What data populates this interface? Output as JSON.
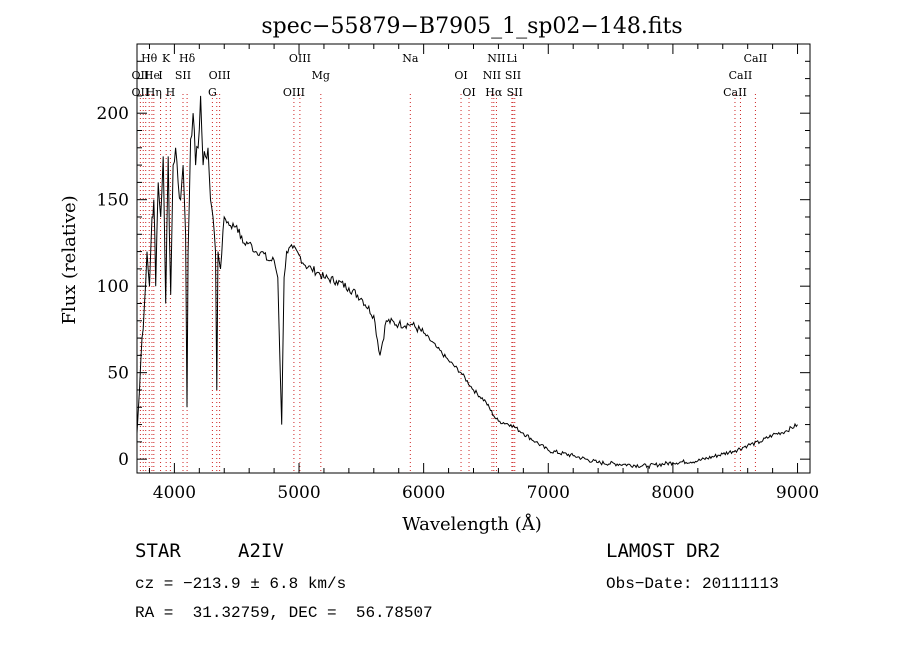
{
  "chart_data": {
    "type": "line",
    "title": "spec−55879−B7905_1_sp02−148.fits",
    "xlabel": "Wavelength (Å)",
    "ylabel": "Flux (relative)",
    "xlim": [
      3700,
      9100
    ],
    "ylim": [
      -8,
      240
    ],
    "x_ticks": [
      4000,
      5000,
      6000,
      7000,
      8000,
      9000
    ],
    "y_ticks": [
      0,
      50,
      100,
      150,
      200
    ],
    "grid": false,
    "series": [
      {
        "x": [
          3700,
          3720,
          3740,
          3760,
          3780,
          3800,
          3820,
          3835,
          3850,
          3870,
          3890,
          3910,
          3930,
          3950,
          3970,
          3990,
          4010,
          4030,
          4050,
          4070,
          4090,
          4101,
          4110,
          4130,
          4150,
          4170,
          4190,
          4210,
          4230,
          4250,
          4270,
          4290,
          4310,
          4330,
          4340,
          4350,
          4370,
          4400,
          4450,
          4500,
          4550,
          4600,
          4650,
          4700,
          4750,
          4800,
          4830,
          4861,
          4880,
          4900,
          4950,
          5000,
          5050,
          5100,
          5150,
          5200,
          5300,
          5400,
          5500,
          5600,
          5650,
          5700,
          5800,
          5900,
          6000,
          6100,
          6200,
          6300,
          6400,
          6500,
          6563,
          6600,
          6700,
          6800,
          6900,
          7000,
          7200,
          7400,
          7600,
          7800,
          8000,
          8200,
          8400,
          8500,
          8600,
          8700,
          8800,
          8900,
          9000
        ],
        "y": [
          15,
          40,
          70,
          90,
          120,
          100,
          140,
          150,
          100,
          160,
          140,
          175,
          90,
          175,
          95,
          170,
          180,
          160,
          150,
          170,
          130,
          30,
          120,
          185,
          200,
          170,
          180,
          210,
          170,
          175,
          180,
          150,
          140,
          120,
          40,
          120,
          110,
          140,
          135,
          135,
          125,
          125,
          120,
          120,
          115,
          115,
          105,
          20,
          105,
          120,
          122,
          118,
          112,
          110,
          108,
          105,
          103,
          99,
          93,
          83,
          60,
          80,
          78,
          78,
          73,
          65,
          57,
          50,
          40,
          33,
          25,
          22,
          20,
          15,
          10,
          5,
          2,
          -2,
          -3,
          -4,
          -2,
          -1,
          3,
          5,
          8,
          10,
          14,
          16,
          20
        ]
      }
    ],
    "line_labels": [
      {
        "text": "Hθ",
        "row": 1,
        "x": 3798
      },
      {
        "text": "K",
        "row": 1,
        "x": 3934
      },
      {
        "text": "Hδ",
        "row": 1,
        "x": 4102
      },
      {
        "text": "OIII",
        "row": 1,
        "x": 5007
      },
      {
        "text": "Na",
        "row": 1,
        "x": 5893
      },
      {
        "text": "NII",
        "row": 1,
        "x": 6584
      },
      {
        "text": "Li",
        "row": 1,
        "x": 6708
      },
      {
        "text": "CaII",
        "row": 1,
        "x": 8662
      },
      {
        "text": "OII",
        "row": 2,
        "x": 3727
      },
      {
        "text": "He",
        "row": 2,
        "x": 3820
      },
      {
        "text": "I",
        "row": 2,
        "x": 3889
      },
      {
        "text": "SII",
        "row": 2,
        "x": 4069
      },
      {
        "text": "OIII",
        "row": 2,
        "x": 4363
      },
      {
        "text": "Mg",
        "row": 2,
        "x": 5175
      },
      {
        "text": "OI",
        "row": 2,
        "x": 6300
      },
      {
        "text": "NII",
        "row": 2,
        "x": 6548
      },
      {
        "text": "SII",
        "row": 2,
        "x": 6717
      },
      {
        "text": "CaII",
        "row": 2,
        "x": 8542
      },
      {
        "text": "OII",
        "row": 3,
        "x": 3727
      },
      {
        "text": "Hη",
        "row": 3,
        "x": 3835
      },
      {
        "text": "H",
        "row": 3,
        "x": 3968
      },
      {
        "text": "G",
        "row": 3,
        "x": 4305
      },
      {
        "text": "OIII",
        "row": 3,
        "x": 4959
      },
      {
        "text": "OI",
        "row": 3,
        "x": 6364
      },
      {
        "text": "Hα",
        "row": 3,
        "x": 6563
      },
      {
        "text": "SII",
        "row": 3,
        "x": 6731
      },
      {
        "text": "CaII",
        "row": 3,
        "x": 8498
      }
    ],
    "line_markers_x": [
      3727,
      3750,
      3770,
      3798,
      3820,
      3835,
      3889,
      3934,
      3968,
      4069,
      4102,
      4305,
      4340,
      4363,
      4959,
      5007,
      5175,
      5893,
      6300,
      6364,
      6548,
      6563,
      6584,
      6708,
      6717,
      6731,
      8498,
      8542,
      8662
    ]
  },
  "info": {
    "class": "STAR",
    "subclass": "A2IV",
    "survey": "LAMOST DR2",
    "cz": "cz = −213.9 ± 6.8 km/s",
    "obs_date": "Obs−Date: 20111113",
    "coords": "RA =  31.32759, DEC =  56.78507"
  }
}
